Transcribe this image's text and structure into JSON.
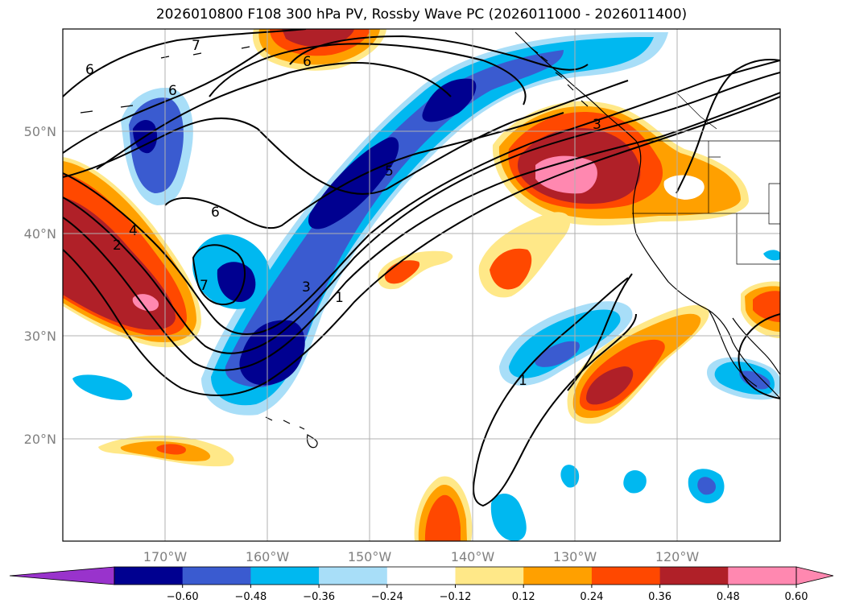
{
  "title": "2026010800 F108 300 hPa PV, Rossby Wave PC (2026011000 - 2026011400)",
  "lat_labels": [
    "50°N",
    "40°N",
    "30°N",
    "20°N"
  ],
  "lon_labels": [
    "170°W",
    "160°W",
    "150°W",
    "140°W",
    "130°W",
    "120°W"
  ],
  "contour_labels": [
    "7",
    "6",
    "6",
    "6",
    "6",
    "5",
    "3",
    "3",
    "1",
    "1",
    "4",
    "2",
    "7"
  ],
  "colorbar": {
    "ticks": [
      "−0.60",
      "−0.48",
      "−0.36",
      "−0.24",
      "−0.12",
      "0.12",
      "0.24",
      "0.36",
      "0.48",
      "0.60"
    ],
    "colors": [
      "#9933cc",
      "#000090",
      "#3a5bd0",
      "#00b8f0",
      "#a8def8",
      "#ffffff",
      "#ffe888",
      "#ffa000",
      "#ff4800",
      "#b02028",
      "#ff88b0",
      "#ff88b0"
    ]
  },
  "fill_colors": {
    "neg1": "#a8def8",
    "neg2": "#00b8f0",
    "neg3": "#3a5bd0",
    "neg4": "#000090",
    "pos1": "#ffe888",
    "pos2": "#ffa000",
    "pos3": "#ff4800",
    "pos4": "#b02028",
    "pos5": "#ff88b0"
  }
}
